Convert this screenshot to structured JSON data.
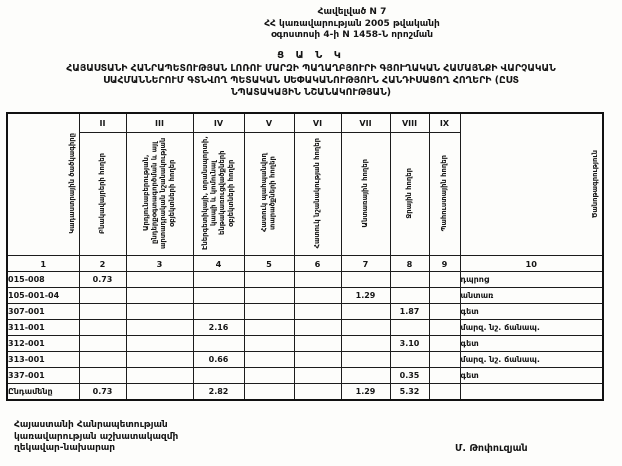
{
  "appendix": {
    "line1": "Հավելված N 7",
    "line2": "ՀՀ կառավարության 2005 թվականի",
    "line3": "օգոստոսի 4-ի N 1458-Ն որոշման"
  },
  "title": {
    "heading": "Ց Ա Ն Կ",
    "subtitle_line1": "ՀԱՅԱՍՏԱՆԻ ՀԱՆՐԱՊԵՏՈՒԹՅԱՆ ԼՈՌՈՒ ՄԱՐԶԻ ՊԱՂԱՂԲՅՈՒՐԻ ԳՅՈՒՂԱԿԱՆ ՀԱՄԱՅՆՔԻ ՎԱՐՉԱԿԱՆ",
    "subtitle_line2": "ՍԱՀՄԱՆՆԵՐՈՒՄ ԳՏՆՎՈՂ ՊԵՏԱԿԱՆ ՍԵՓԱԿԱՆՈՒԹՅՈՒՆ ՀԱՆԴԻՍԱՑՈՂ ՀՈՂԵՐԻ (ԸՍՏ",
    "subtitle_line3": "ՆՊԱՏԱԿԱՅԻՆ ՆՇԱՆԱԿՈՒԹՅԱՆ)"
  },
  "table": {
    "corner_header": "Կադաստրային ծածկագիրը",
    "note_header": "Ծանոթագրություն",
    "roman_numerals": [
      "II",
      "III",
      "IV",
      "V",
      "VI",
      "VII",
      "VIII",
      "IX"
    ],
    "category_headers": [
      "Բնակավայրերի հողեր",
      "Արդյունաբերության, ընդերքօգտագործման և այլ արտադրական նշանակության օբյեկտների հողեր",
      "Էներգետիկայի, տրանսպորտի, կապի և կոմունալ ենթակառուցվածքների օբյեկտների հողեր",
      "Հատուկ պահպանվող տարածքների հողեր",
      "Հատուկ նշանակության հողեր",
      "Անտառային հողեր",
      "Ջրային հողեր",
      "Պահուստային հողեր"
    ],
    "column_numbers": [
      "1",
      "2",
      "3",
      "4",
      "5",
      "6",
      "7",
      "8",
      "9",
      "10"
    ],
    "rows": [
      [
        "015-008",
        "0.73",
        "",
        "",
        "",
        "",
        "",
        "",
        "",
        "դպրոց"
      ],
      [
        "105-001-04",
        "",
        "",
        "",
        "",
        "",
        "1.29",
        "",
        "",
        "անտառ"
      ],
      [
        "307-001",
        "",
        "",
        "",
        "",
        "",
        "",
        "1.87",
        "",
        "գետ"
      ],
      [
        "311-001",
        "",
        "",
        "2.16",
        "",
        "",
        "",
        "",
        "",
        "մարզ. նշ. ճանապ."
      ],
      [
        "312-001",
        "",
        "",
        "",
        "",
        "",
        "",
        "3.10",
        "",
        "գետ"
      ],
      [
        "313-001",
        "",
        "",
        "0.66",
        "",
        "",
        "",
        "",
        "",
        "մարզ. նշ. ճանապ."
      ],
      [
        "337-001",
        "",
        "",
        "",
        "",
        "",
        "",
        "0.35",
        "",
        "գետ"
      ],
      [
        "Ընդամենը",
        "0.73",
        "",
        "2.82",
        "",
        "",
        "1.29",
        "5.32",
        "",
        ""
      ]
    ]
  },
  "footer": {
    "line1": "Հայաստանի Հանրապետության",
    "line2": "կառավարության աշխատակազմի",
    "line3": "ղեկավար-նախարար",
    "signature": "Մ. Թոփուզյան"
  }
}
